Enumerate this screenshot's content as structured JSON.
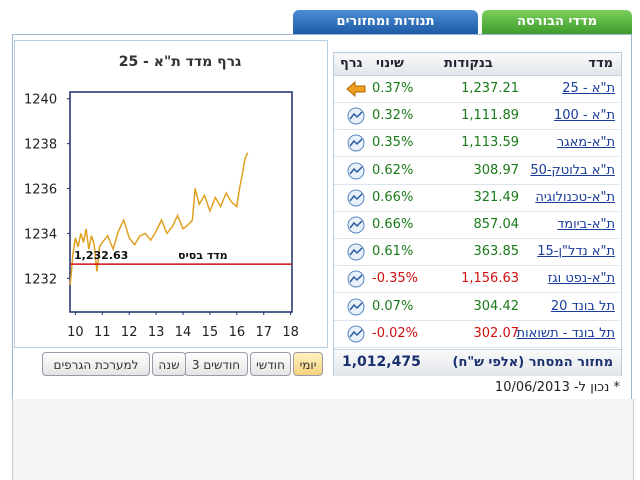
{
  "tabs": [
    "מדדי הבורסה",
    "תנודות ומחזורים"
  ],
  "chart": {
    "type": "line",
    "title": "גרף מדד ת\"א - 25",
    "color": "#e0a020",
    "x": [
      9.8,
      9.85,
      9.9,
      10.0,
      10.1,
      10.2,
      10.3,
      10.4,
      10.5,
      10.6,
      10.7,
      10.8,
      10.9,
      11.0,
      11.2,
      11.4,
      11.6,
      11.8,
      12.0,
      12.2,
      12.4,
      12.6,
      12.8,
      13.0,
      13.2,
      13.4,
      13.6,
      13.8,
      14.0,
      14.2,
      14.35,
      14.45,
      14.6,
      14.8,
      15.0,
      15.2,
      15.4,
      15.6,
      15.8,
      16.0,
      16.1,
      16.2,
      16.3,
      16.4
    ],
    "values": [
      1231.7,
      1232.2,
      1233.0,
      1233.8,
      1233.4,
      1234.0,
      1233.6,
      1234.2,
      1233.3,
      1233.9,
      1233.5,
      1232.3,
      1233.4,
      1233.6,
      1233.9,
      1233.3,
      1234.1,
      1234.6,
      1233.8,
      1233.5,
      1233.9,
      1234.0,
      1233.7,
      1234.1,
      1234.6,
      1234.0,
      1234.3,
      1234.8,
      1234.2,
      1234.4,
      1234.6,
      1236.0,
      1235.3,
      1235.7,
      1235.0,
      1235.6,
      1235.2,
      1235.8,
      1235.4,
      1235.2,
      1236.0,
      1236.6,
      1237.3,
      1237.6
    ],
    "xlim": [
      9.8,
      18.05
    ],
    "ylim": [
      1230.5,
      1240.3
    ],
    "xticks": [
      10,
      11,
      12,
      13,
      14,
      15,
      16,
      17,
      18
    ],
    "yticks": [
      1232,
      1234,
      1236,
      1238,
      1240
    ],
    "base": {
      "value": 1232.63,
      "label": "1,232.63",
      "name": "מדד בסיס",
      "color": "#d01010"
    }
  },
  "range_buttons": [
    "יומי",
    "חודשי",
    "3 חודשים",
    "שנה",
    "למערכת הגרפים"
  ],
  "table": {
    "header": [
      "מדד",
      "בנקודות",
      "שינוי",
      "גרף"
    ],
    "rows": [
      [
        "ת\"א - 25",
        "1,237.21",
        "0.37%"
      ],
      [
        "ת\"א - 100",
        "1,111.89",
        "0.32%"
      ],
      [
        "ת\"א-מאגר",
        "1,113.59",
        "0.35%"
      ],
      [
        "ת\"א בלוטק-50",
        "308.97",
        "0.62%"
      ],
      [
        "ת\"א-טכנולוגיה",
        "321.49",
        "0.66%"
      ],
      [
        "ת\"א-ביומד",
        "857.04",
        "0.66%"
      ],
      [
        "ת\"א נדל\"ן-15",
        "363.85",
        "0.61%"
      ],
      [
        "ת\"א-נפט וגז",
        "1,156.63",
        "-0.35%"
      ],
      [
        "תל בונד 20",
        "304.42",
        "0.07%"
      ],
      [
        "תל בונד - תשואות",
        "302.07",
        "-0.02%"
      ]
    ],
    "footer": {
      "label": "מחזור המסחר (אלפי ש\"ח)",
      "value": "1,012,475"
    }
  },
  "note": "* נכון ל- 10/06/2013"
}
